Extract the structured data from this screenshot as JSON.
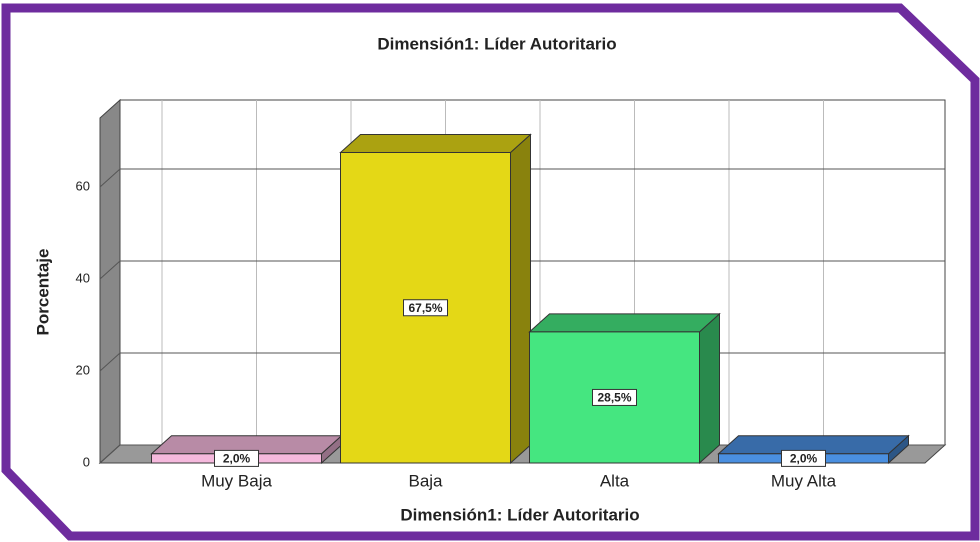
{
  "chart_data": {
    "type": "bar3d",
    "title": "Dimensión1: Líder Autoritario",
    "x_label": "Dimensión1: Líder Autoritario",
    "y_label": "Porcentaje",
    "categories": [
      "Muy Baja",
      "Baja",
      "Alta",
      "Muy Alta"
    ],
    "values": [
      2.0,
      67.5,
      28.5,
      2.0
    ],
    "value_labels": [
      "2,0%",
      "67,5%",
      "28,5%",
      "2,0%"
    ],
    "colors": [
      "#f5b9dd",
      "#e4d816",
      "#45e680",
      "#4a8fe0"
    ],
    "ylim": [
      0,
      75
    ],
    "yticks": [
      0,
      20,
      40,
      60
    ],
    "grid": true
  }
}
